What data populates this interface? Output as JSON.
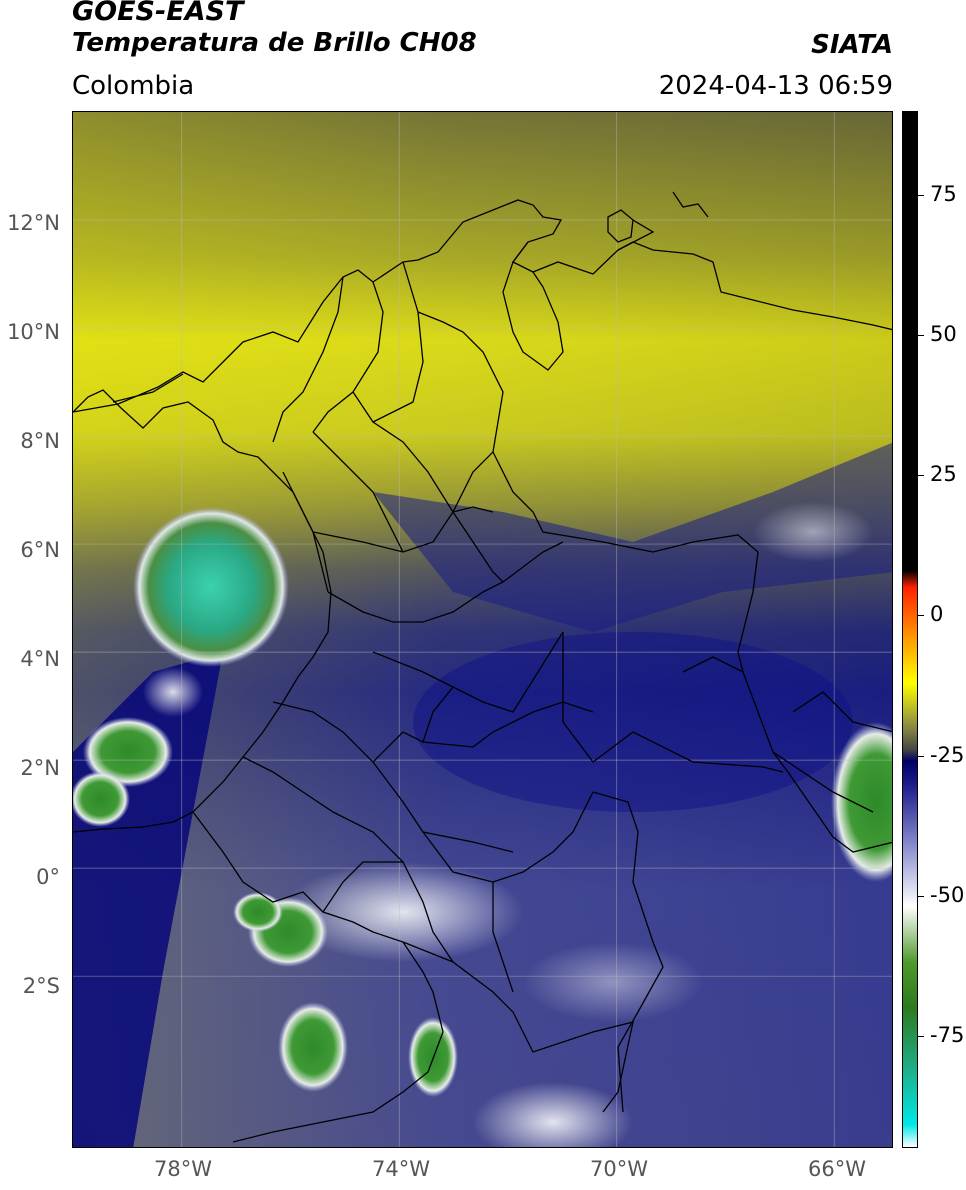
{
  "header": {
    "satellite": "GOES-EAST",
    "product": "Temperatura de Brillo CH08",
    "brand": "SIATA",
    "region": "Colombia",
    "timestamp": "2024-04-13 06:59"
  },
  "map": {
    "projection": "PlateCarree",
    "lon_range": [
      -80,
      -64.9
    ],
    "lat_range": [
      -5.2,
      14
    ],
    "gridlines": true,
    "lat_ticks": [
      {
        "value": 12,
        "label": "12°N"
      },
      {
        "value": 10,
        "label": "10°N"
      },
      {
        "value": 8,
        "label": "8°N"
      },
      {
        "value": 6,
        "label": "6°N"
      },
      {
        "value": 4,
        "label": "4°N"
      },
      {
        "value": 2,
        "label": "2°N"
      },
      {
        "value": 0,
        "label": "0°"
      },
      {
        "value": -2,
        "label": "2°S"
      }
    ],
    "lon_ticks": [
      {
        "value": -78,
        "label": "78°W"
      },
      {
        "value": -74,
        "label": "74°W"
      },
      {
        "value": -70,
        "label": "70°W"
      },
      {
        "value": -66,
        "label": "66°W"
      }
    ]
  },
  "colorbar": {
    "range": [
      -95,
      90
    ],
    "ticks": [
      {
        "value": 75,
        "label": "75"
      },
      {
        "value": 50,
        "label": "50"
      },
      {
        "value": 25,
        "label": "25"
      },
      {
        "value": 0,
        "label": "0"
      },
      {
        "value": -25,
        "label": "-25"
      },
      {
        "value": -50,
        "label": "-50"
      },
      {
        "value": -75,
        "label": "-75"
      }
    ],
    "stops": [
      {
        "value": -95,
        "color": "#ffffff"
      },
      {
        "value": -91,
        "color": "#00e8e8"
      },
      {
        "value": -80,
        "color": "#1faa7e"
      },
      {
        "value": -70,
        "color": "#2d7a1d"
      },
      {
        "value": -62,
        "color": "#4e9a2a"
      },
      {
        "value": -52,
        "color": "#ffffff"
      },
      {
        "value": -40,
        "color": "#7d80c8"
      },
      {
        "value": -30,
        "color": "#1a1a8a"
      },
      {
        "value": -26,
        "color": "#000066"
      },
      {
        "value": -24,
        "color": "#454545"
      },
      {
        "value": -20,
        "color": "#888844"
      },
      {
        "value": -12,
        "color": "#ffff00"
      },
      {
        "value": -4,
        "color": "#ff9900"
      },
      {
        "value": 5,
        "color": "#ff2200"
      },
      {
        "value": 8,
        "color": "#000000"
      },
      {
        "value": 90,
        "color": "#000000"
      }
    ]
  },
  "colors": {
    "cold_cloud": "#1c2f8f",
    "warm_clear": "#d6d615",
    "deep_convection": "#3aa47a"
  }
}
